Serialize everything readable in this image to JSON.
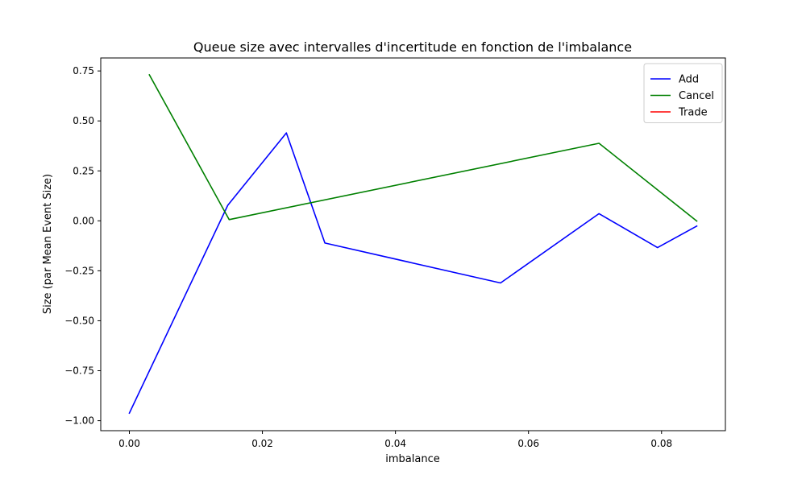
{
  "chart_data": {
    "type": "line",
    "title": "Queue size avec intervalles d'incertitude en fonction de l'imbalance",
    "xlabel": "imbalance",
    "ylabel": "Size (par Mean Event Size)",
    "xlim": [
      -0.0043,
      0.0896
    ],
    "ylim": [
      -1.05,
      0.815
    ],
    "x_ticks": [
      0.0,
      0.02,
      0.04,
      0.06,
      0.08
    ],
    "x_tick_labels": [
      "0.00",
      "0.02",
      "0.04",
      "0.06",
      "0.08"
    ],
    "y_ticks": [
      -1.0,
      -0.75,
      -0.5,
      -0.25,
      0.0,
      0.25,
      0.5,
      0.75
    ],
    "y_tick_labels": [
      "−1.00",
      "−0.75",
      "−0.50",
      "−0.25",
      "0.00",
      "0.25",
      "0.50",
      "0.75"
    ],
    "grid": false,
    "legend_position": "upper right",
    "series": [
      {
        "name": "Add",
        "color": "#0000ff",
        "x": [
          0.0,
          0.0148,
          0.0236,
          0.0294,
          0.0558,
          0.0706,
          0.0794,
          0.0853
        ],
        "y": [
          -0.962,
          0.078,
          0.44,
          -0.111,
          -0.311,
          0.036,
          -0.134,
          -0.026
        ]
      },
      {
        "name": "Cancel",
        "color": "#008000",
        "x": [
          0.003,
          0.015,
          0.0706,
          0.0853
        ],
        "y": [
          0.731,
          0.006,
          0.388,
          -0.001
        ]
      },
      {
        "name": "Trade",
        "color": "#ff0000",
        "x": [],
        "y": []
      }
    ]
  }
}
